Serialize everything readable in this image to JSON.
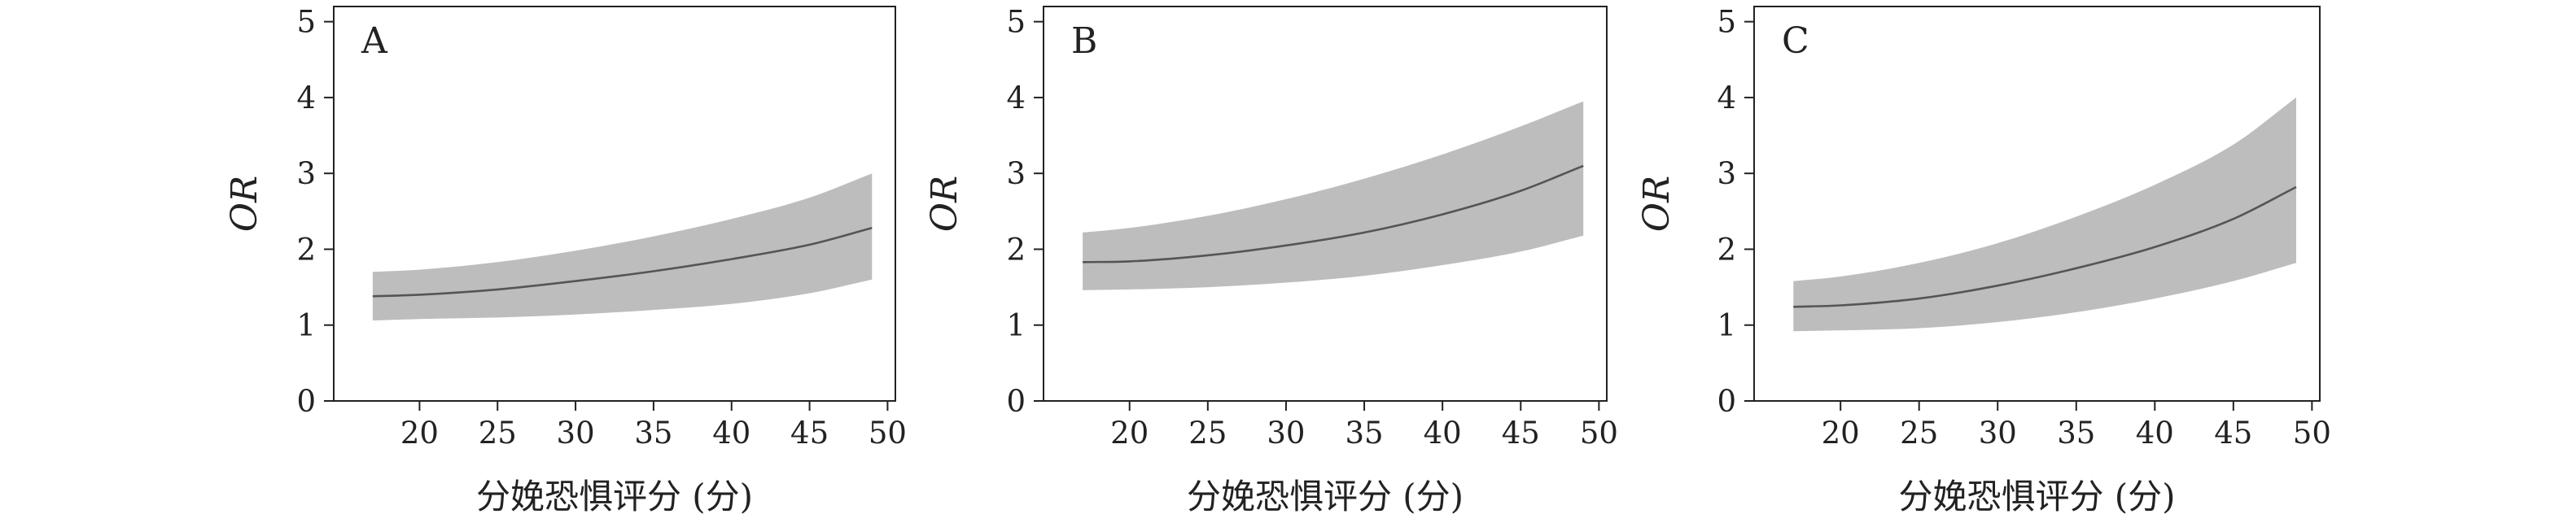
{
  "colors": {
    "band": "#bdbdbd",
    "line": "#555555",
    "axis": "#222222",
    "background": "#ffffff"
  },
  "chart_data": [
    {
      "type": "line",
      "panel": "A",
      "xlabel": "分娩恐惧评分 (分)",
      "ylabel": "OR",
      "xlim": [
        14.5,
        50.5
      ],
      "ylim": [
        0,
        5.2
      ],
      "xticks": [
        20,
        25,
        30,
        35,
        40,
        45,
        50
      ],
      "yticks": [
        0,
        1,
        2,
        3,
        4,
        5
      ],
      "grid": false,
      "x": [
        17,
        20,
        25,
        30,
        35,
        40,
        45,
        49
      ],
      "series": [
        {
          "values": [
            1.38,
            1.4,
            1.47,
            1.58,
            1.71,
            1.87,
            2.06,
            2.28
          ]
        }
      ],
      "ci_lower": [
        1.06,
        1.08,
        1.1,
        1.14,
        1.2,
        1.28,
        1.42,
        1.6
      ],
      "ci_upper": [
        1.7,
        1.73,
        1.83,
        1.98,
        2.17,
        2.4,
        2.68,
        3.0
      ]
    },
    {
      "type": "line",
      "panel": "B",
      "xlabel": "分娩恐惧评分 (分)",
      "ylabel": "OR",
      "xlim": [
        14.5,
        50.5
      ],
      "ylim": [
        0,
        5.2
      ],
      "xticks": [
        20,
        25,
        30,
        35,
        40,
        45,
        50
      ],
      "yticks": [
        0,
        1,
        2,
        3,
        4,
        5
      ],
      "grid": false,
      "x": [
        17,
        20,
        25,
        30,
        35,
        40,
        45,
        49
      ],
      "series": [
        {
          "values": [
            1.83,
            1.84,
            1.92,
            2.05,
            2.22,
            2.46,
            2.77,
            3.1
          ]
        }
      ],
      "ci_lower": [
        1.46,
        1.47,
        1.5,
        1.56,
        1.65,
        1.79,
        1.97,
        2.18
      ],
      "ci_upper": [
        2.22,
        2.28,
        2.44,
        2.66,
        2.93,
        3.25,
        3.62,
        3.95
      ]
    },
    {
      "type": "line",
      "panel": "C",
      "xlabel": "分娩恐惧评分 (分)",
      "ylabel": "OR",
      "xlim": [
        14.5,
        50.5
      ],
      "ylim": [
        0,
        5.2
      ],
      "xticks": [
        20,
        25,
        30,
        35,
        40,
        45,
        50
      ],
      "yticks": [
        0,
        1,
        2,
        3,
        4,
        5
      ],
      "grid": false,
      "x": [
        17,
        20,
        25,
        30,
        35,
        40,
        45,
        49
      ],
      "series": [
        {
          "values": [
            1.24,
            1.26,
            1.35,
            1.52,
            1.75,
            2.03,
            2.4,
            2.82
          ]
        }
      ],
      "ci_lower": [
        0.92,
        0.93,
        0.96,
        1.04,
        1.17,
        1.35,
        1.58,
        1.82
      ],
      "ci_upper": [
        1.58,
        1.64,
        1.82,
        2.08,
        2.43,
        2.85,
        3.38,
        4.0
      ]
    }
  ]
}
